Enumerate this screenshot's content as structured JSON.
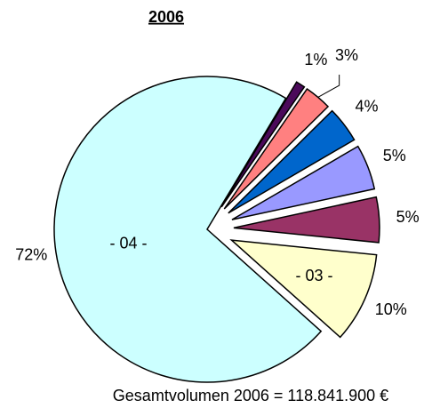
{
  "chart_data": {
    "type": "pie",
    "title": "2006",
    "categories": [
      null,
      null,
      null,
      null,
      null,
      "- 03 -",
      "- 04 -"
    ],
    "values": [
      1,
      3,
      4,
      5,
      5,
      10,
      72
    ],
    "value_labels": [
      "1%",
      "3%",
      "4%",
      "5%",
      "5%",
      "10%",
      "72%"
    ],
    "colors": [
      "#4b0a5a",
      "#ff8080",
      "#0066cc",
      "#9999ff",
      "#993366",
      "#ffffcc",
      "#ccffff"
    ],
    "annotation": "Gesamtvolumen 2006 = 118.841.900 €"
  }
}
